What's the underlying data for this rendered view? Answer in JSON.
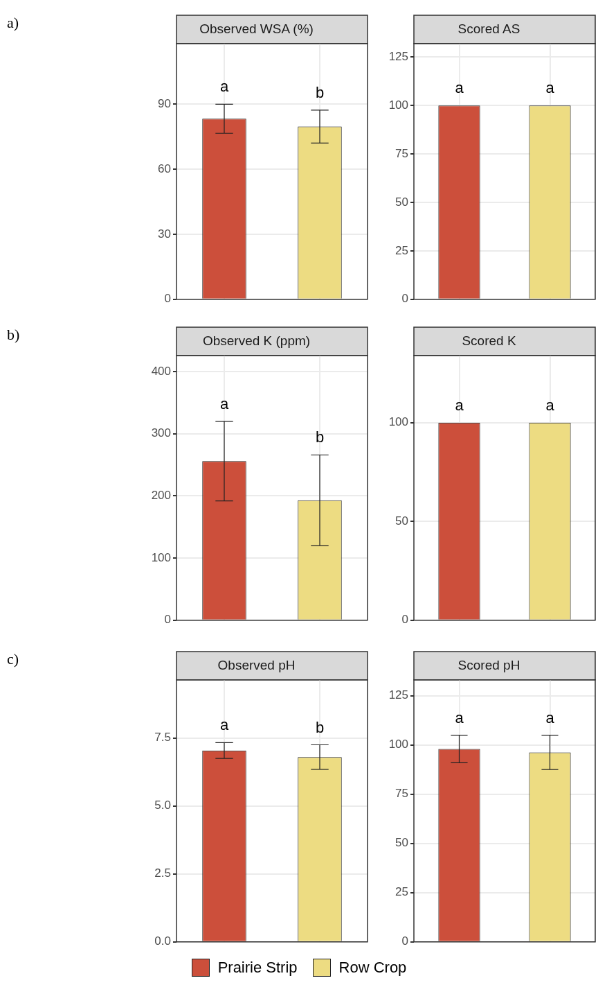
{
  "chart_data": [
    {
      "type": "bar",
      "title": "Observed WSA (%)",
      "categories": [
        null,
        null
      ],
      "ylim": [
        0,
        118
      ],
      "yticks": [
        0,
        30,
        60,
        90
      ],
      "grid": true,
      "series": [
        {
          "color": "#cc4f3b",
          "values": [
            83.3,
            null
          ],
          "errors": [
            6.7,
            null
          ]
        },
        {
          "color": "#eddc82",
          "values": [
            null,
            79.7
          ],
          "errors": [
            null,
            7.6
          ]
        }
      ],
      "annotations": [
        "a)",
        "a",
        "b"
      ]
    },
    {
      "type": "bar",
      "title": "Scored AS",
      "categories": [
        null,
        null
      ],
      "ylim": [
        0,
        132
      ],
      "yticks": [
        0,
        25,
        50,
        75,
        100,
        125
      ],
      "grid": true,
      "series": [
        {
          "color": "#cc4f3b",
          "values": [
            100,
            null
          ]
        },
        {
          "color": "#eddc82",
          "values": [
            null,
            100
          ]
        }
      ],
      "annotations": [
        "a",
        "a"
      ]
    },
    {
      "type": "bar",
      "title": "Observed K (ppm)",
      "categories": [
        null,
        null
      ],
      "ylim": [
        0,
        426
      ],
      "yticks": [
        0,
        100,
        200,
        300,
        400
      ],
      "grid": true,
      "series": [
        {
          "color": "#cc4f3b",
          "values": [
            256,
            null
          ],
          "errors": [
            64,
            null
          ]
        },
        {
          "color": "#eddc82",
          "values": [
            null,
            193
          ],
          "errors": [
            null,
            73
          ]
        }
      ],
      "annotations": [
        "b)",
        "a",
        "b"
      ]
    },
    {
      "type": "bar",
      "title": "Scored K",
      "categories": [
        null,
        null
      ],
      "ylim": [
        0,
        134
      ],
      "yticks": [
        0,
        50,
        100
      ],
      "grid": true,
      "series": [
        {
          "color": "#cc4f3b",
          "values": [
            100,
            null
          ]
        },
        {
          "color": "#eddc82",
          "values": [
            null,
            100
          ]
        }
      ],
      "annotations": [
        "a",
        "a"
      ]
    },
    {
      "type": "bar",
      "title": "Observed pH",
      "categories": [
        null,
        null
      ],
      "ylim": [
        0,
        9.64
      ],
      "yticks": [
        {
          "value": 0,
          "label": "0.0"
        },
        2.5,
        {
          "value": 5,
          "label": "5.0"
        },
        7.5
      ],
      "grid": true,
      "legend": "bottom",
      "series": [
        {
          "name": "Prairie Strip",
          "color": "#cc4f3b",
          "values": [
            7.04,
            null
          ],
          "errors": [
            0.29,
            null
          ]
        },
        {
          "name": "Row Crop",
          "color": "#eddc82",
          "values": [
            null,
            6.8
          ],
          "errors": [
            null,
            0.45
          ]
        }
      ],
      "annotations": [
        "c)",
        "a",
        "b"
      ]
    },
    {
      "type": "bar",
      "title": "Scored pH",
      "categories": [
        null,
        null
      ],
      "ylim": [
        0,
        133
      ],
      "yticks": [
        0,
        25,
        50,
        75,
        100,
        125
      ],
      "grid": true,
      "series": [
        {
          "color": "#cc4f3b",
          "values": [
            97.9,
            null
          ],
          "errors": [
            7,
            null
          ]
        },
        {
          "color": "#eddc82",
          "values": [
            null,
            96.2
          ],
          "errors": [
            null,
            8.7
          ]
        }
      ],
      "annotations": [
        "a",
        "a"
      ]
    }
  ]
}
